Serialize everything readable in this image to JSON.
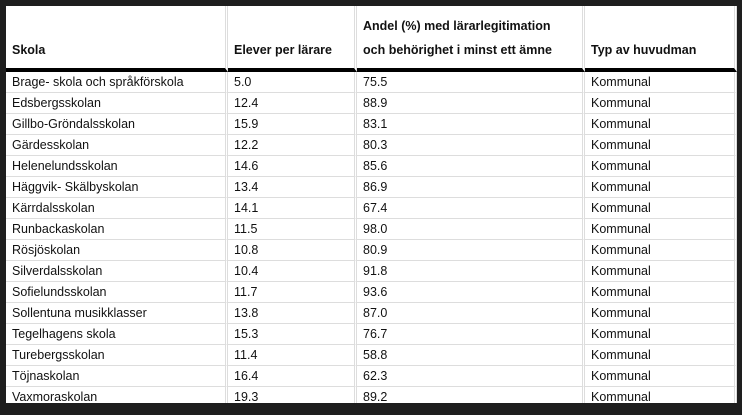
{
  "table": {
    "headers": [
      "Skola",
      "Elever per lärare",
      "Andel (%) med lärarlegitimation och behörighet i minst ett ämne",
      "Typ av huvudman"
    ],
    "header_lines": {
      "col3_line1": "Andel (%) med lärarlegitimation",
      "col3_line2": "och behörighet i minst ett ämne"
    },
    "rows": [
      [
        "Brage- skola och språkförskola",
        "5.0",
        "75.5",
        "Kommunal"
      ],
      [
        "Edsbergsskolan",
        "12.4",
        "88.9",
        "Kommunal"
      ],
      [
        "Gillbo-Gröndalsskolan",
        "15.9",
        "83.1",
        "Kommunal"
      ],
      [
        "Gärdesskolan",
        "12.2",
        "80.3",
        "Kommunal"
      ],
      [
        "Helenelundsskolan",
        "14.6",
        "85.6",
        "Kommunal"
      ],
      [
        "Häggvik- Skälbyskolan",
        "13.4",
        "86.9",
        "Kommunal"
      ],
      [
        "Kärrdalsskolan",
        "14.1",
        "67.4",
        "Kommunal"
      ],
      [
        "Runbackaskolan",
        "11.5",
        "98.0",
        "Kommunal"
      ],
      [
        "Rösjöskolan",
        "10.8",
        "80.9",
        "Kommunal"
      ],
      [
        "Silverdalsskolan",
        "10.4",
        "91.8",
        "Kommunal"
      ],
      [
        "Sofielundsskolan",
        "11.7",
        "93.6",
        "Kommunal"
      ],
      [
        "Sollentuna musikklasser",
        "13.8",
        "87.0",
        "Kommunal"
      ],
      [
        "Tegelhagens skola",
        "15.3",
        "76.7",
        "Kommunal"
      ],
      [
        "Turebergsskolan",
        "11.4",
        "58.8",
        "Kommunal"
      ],
      [
        "Töjnaskolan",
        "16.4",
        "62.3",
        "Kommunal"
      ],
      [
        "Vaxmoraskolan",
        "19.3",
        "89.2",
        "Kommunal"
      ]
    ]
  }
}
